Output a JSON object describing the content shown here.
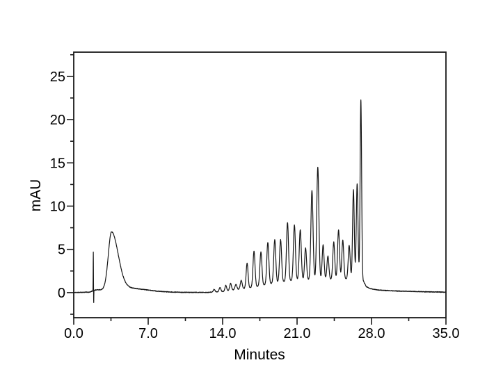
{
  "figure": {
    "background_color": "#ffffff",
    "frame_color": "#1a1a1a",
    "trace_color": "#161616",
    "text_color": "#000000"
  },
  "chart_data": {
    "type": "line",
    "title": "",
    "xlabel": "Minutes",
    "ylabel": "mAU",
    "xlim": [
      0,
      35
    ],
    "ylim": [
      -2.9,
      27.8
    ],
    "grid": false,
    "legend": "none",
    "x_ticks": {
      "major": [
        {
          "t": 0,
          "label": "0.0"
        },
        {
          "t": 7,
          "label": "7.0"
        },
        {
          "t": 14,
          "label": "14.0"
        },
        {
          "t": 21,
          "label": "21.0"
        },
        {
          "t": 28,
          "label": "28.0"
        },
        {
          "t": 35,
          "label": "35.0"
        }
      ],
      "minor": [
        3.5,
        10.5,
        17.5,
        24.5,
        31.5
      ]
    },
    "y_ticks": {
      "major": [
        {
          "v": 0,
          "label": "0"
        },
        {
          "v": 5,
          "label": "5"
        },
        {
          "v": 10,
          "label": "10"
        },
        {
          "v": 15,
          "label": "15"
        },
        {
          "v": 20,
          "label": "20"
        },
        {
          "v": 25,
          "label": "25"
        }
      ],
      "minor": [
        -2.5,
        2.5,
        7.5,
        12.5,
        17.5,
        22.5,
        27.5
      ]
    },
    "series": [
      {
        "name": "chromatogram-trace",
        "description": "HPLC chromatogram: injection spike ~1.8 min (4.6 mAU, dip -1.5), broad solvent peak at 3.55 min (~6.8 mAU), flat baseline 7-13 min, then an oscillating train of peaks from ~13 to 27.3 min with maxima 14.5 mAU at 23.0 min and 22.4 mAU at 27.0 min, returning to baseline after 28 min",
        "sample_step_min": 0.01,
        "noise_amplitude_mau": 0.05,
        "baseline_envelope": [
          [
            0,
            0
          ],
          [
            1.5,
            0
          ],
          [
            2.1,
            0.2
          ],
          [
            2.5,
            0.15
          ],
          [
            3.0,
            0.1
          ],
          [
            7.0,
            0.05
          ],
          [
            12.5,
            0.02
          ],
          [
            13.0,
            0.05
          ],
          [
            14.0,
            0.12
          ],
          [
            15.0,
            0.3
          ],
          [
            16.0,
            0.45
          ],
          [
            17.0,
            0.65
          ],
          [
            18.0,
            0.9
          ],
          [
            19.0,
            1.15
          ],
          [
            20.0,
            1.3
          ],
          [
            21.0,
            1.45
          ],
          [
            26.8,
            1.6
          ],
          [
            27.25,
            1.3
          ],
          [
            27.5,
            0.7
          ],
          [
            27.9,
            0.45
          ],
          [
            28.6,
            0.3
          ],
          [
            30.0,
            0.2
          ],
          [
            33.0,
            0.1
          ],
          [
            35.0,
            0.05
          ]
        ],
        "peaks": [
          {
            "t": 1.84,
            "h": 4.5,
            "w": 0.013
          },
          {
            "t": 1.875,
            "h": -1.6,
            "w": 0.011
          },
          {
            "t": 3.55,
            "h": 6.6,
            "wl": 0.3,
            "wr": 0.62
          },
          {
            "t": 5.0,
            "h": 0.45,
            "w": 1.8
          },
          {
            "t": 13.2,
            "h": 0.3,
            "w": 0.08
          },
          {
            "t": 13.75,
            "h": 0.5,
            "w": 0.08
          },
          {
            "t": 14.3,
            "h": 0.65,
            "w": 0.08
          },
          {
            "t": 14.75,
            "h": 0.8,
            "w": 0.085
          },
          {
            "t": 15.25,
            "h": 0.6,
            "w": 0.09
          },
          {
            "t": 15.75,
            "h": 1.0,
            "w": 0.09
          },
          {
            "t": 16.3,
            "h": 2.9,
            "w": 0.09
          },
          {
            "t": 16.95,
            "h": 4.15,
            "w": 0.095
          },
          {
            "t": 17.6,
            "h": 3.9,
            "w": 0.095
          },
          {
            "t": 18.25,
            "h": 4.85,
            "w": 0.095
          },
          {
            "t": 18.9,
            "h": 5.0,
            "w": 0.095
          },
          {
            "t": 19.45,
            "h": 4.9,
            "w": 0.095
          },
          {
            "t": 20.1,
            "h": 6.8,
            "w": 0.095
          },
          {
            "t": 20.75,
            "h": 6.4,
            "w": 0.095
          },
          {
            "t": 21.3,
            "h": 5.8,
            "w": 0.095
          },
          {
            "t": 21.8,
            "h": 3.7,
            "w": 0.09
          },
          {
            "t": 22.4,
            "h": 10.3,
            "w": 0.1
          },
          {
            "t": 22.95,
            "h": 13.0,
            "w": 0.1
          },
          {
            "t": 23.45,
            "h": 4.0,
            "w": 0.09
          },
          {
            "t": 23.9,
            "h": 2.7,
            "w": 0.09
          },
          {
            "t": 24.45,
            "h": 4.3,
            "w": 0.09
          },
          {
            "t": 24.9,
            "h": 5.7,
            "w": 0.09
          },
          {
            "t": 25.3,
            "h": 4.5,
            "w": 0.09
          },
          {
            "t": 25.9,
            "h": 3.9,
            "w": 0.09
          },
          {
            "t": 26.3,
            "h": 10.3,
            "w": 0.08
          },
          {
            "t": 26.65,
            "h": 11.0,
            "w": 0.08
          },
          {
            "t": 27.0,
            "h": 20.8,
            "w": 0.07
          }
        ]
      }
    ]
  }
}
